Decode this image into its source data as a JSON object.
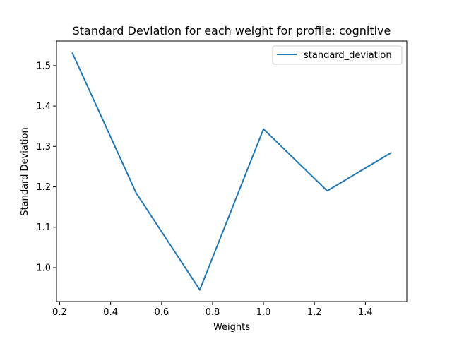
{
  "chart_data": {
    "type": "line",
    "title": "Standard Deviation for each weight for profile: cognitive",
    "xlabel": "Weights",
    "ylabel": "Standard Deviation",
    "x": [
      0.25,
      0.5,
      0.75,
      1.0,
      1.25,
      1.5
    ],
    "series": [
      {
        "name": "standard_deviation",
        "values": [
          1.531,
          1.185,
          0.945,
          1.343,
          1.19,
          1.284
        ],
        "color": "#1f77b4"
      }
    ],
    "xlim": [
      0.1875,
      1.5625
    ],
    "ylim": [
      0.916,
      1.561
    ],
    "xticks": [
      0.2,
      0.4,
      0.6,
      0.8,
      1.0,
      1.2,
      1.4
    ],
    "xtick_labels": [
      "0.2",
      "0.4",
      "0.6",
      "0.8",
      "1.0",
      "1.2",
      "1.4"
    ],
    "yticks": [
      1.0,
      1.1,
      1.2,
      1.3,
      1.4,
      1.5
    ],
    "ytick_labels": [
      "1.0",
      "1.1",
      "1.2",
      "1.3",
      "1.4",
      "1.5"
    ],
    "grid": false,
    "legend_position": "top-right"
  }
}
